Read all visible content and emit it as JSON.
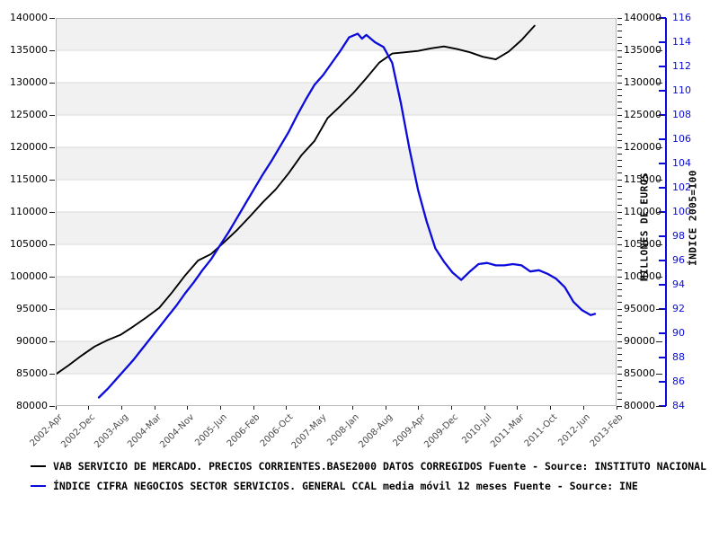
{
  "chart_data": {
    "type": "line",
    "title": "",
    "grid": "horizontal-bands",
    "legend_position": "bottom-left",
    "x_axis": {
      "start": "2002-Apr",
      "end": "2013-Feb",
      "range_months": 130,
      "tick_labels": [
        "2002-Apr",
        "2002-Dec",
        "2003-Aug",
        "2004-Mar",
        "2004-Nov",
        "2005-Jun",
        "2006-Feb",
        "2006-Oct",
        "2007-May",
        "2008-Jan",
        "2008-Aug",
        "2009-Apr",
        "2009-Dec",
        "2010-Jul",
        "2011-Mar",
        "2011-Oct",
        "2012-Jun",
        "2013-Feb"
      ]
    },
    "y_axis_left": {
      "label": "",
      "ticks": [
        140000,
        135000,
        130000,
        125000,
        120000,
        115000,
        110000,
        105000,
        100000,
        95000,
        90000,
        85000,
        80000
      ],
      "range": [
        80000,
        140000
      ]
    },
    "y_axis_right_euros": {
      "label": "MILLONES DE EUROS",
      "ticks": [
        140000,
        135000,
        130000,
        125000,
        120000,
        115000,
        110000,
        105000,
        100000,
        95000,
        90000,
        85000,
        80000
      ],
      "minor_tick_step": 1000,
      "range": [
        80000,
        140000
      ]
    },
    "y_axis_right_index": {
      "label": "ÍNDICE 2005=100",
      "ticks": [
        116,
        114,
        112,
        110,
        108,
        106,
        104,
        102,
        100,
        98,
        96,
        94,
        92,
        90,
        88,
        86,
        84
      ],
      "range": [
        84,
        116
      ]
    },
    "series": [
      {
        "name": "VAB SERVICIO DE MERCADO. PRECIOS CORRIENTES.BASE2000 DATOS CORREGIDOS  Fuente - Source: INSTITUTO NACIONAL",
        "axis": "left",
        "color": "#000000",
        "x_labels": [
          "2002-Apr",
          "2002-Jul",
          "2002-Oct",
          "2003-Jan",
          "2003-Apr",
          "2003-Jul",
          "2003-Oct",
          "2004-Jan",
          "2004-Apr",
          "2004-Jul",
          "2004-Oct",
          "2005-Jan",
          "2005-Apr",
          "2005-Jul",
          "2005-Oct",
          "2006-Jan",
          "2006-Apr",
          "2006-Jul",
          "2006-Oct",
          "2007-Jan",
          "2007-Apr",
          "2007-Jul",
          "2007-Oct",
          "2008-Jan",
          "2008-Apr",
          "2008-Jul",
          "2008-Oct",
          "2009-Jan",
          "2009-Apr",
          "2009-Jul",
          "2009-Oct",
          "2010-Jan",
          "2010-Apr",
          "2010-Jul",
          "2010-Oct",
          "2011-Jan",
          "2011-Apr",
          "2011-Jul"
        ],
        "x_months_from_2002_apr": [
          0,
          3,
          6,
          9,
          12,
          15,
          18,
          21,
          24,
          27,
          30,
          33,
          36,
          39,
          42,
          45,
          48,
          51,
          54,
          57,
          60,
          63,
          66,
          69,
          72,
          75,
          78,
          81,
          84,
          87,
          90,
          93,
          96,
          99,
          102,
          105,
          108,
          111
        ],
        "values": [
          84900,
          86300,
          87800,
          89200,
          90200,
          91000,
          92300,
          93700,
          95200,
          97600,
          100200,
          102500,
          103500,
          105300,
          107200,
          109300,
          111500,
          113500,
          116000,
          118800,
          121000,
          124500,
          126400,
          128400,
          130700,
          133100,
          134500,
          134700,
          134900,
          135300,
          135600,
          135200,
          134700,
          134000,
          133600,
          134800,
          136600,
          138800
        ]
      },
      {
        "name": "ÍNDICE CIFRA NEGOCIOS SECTOR SERVICIOS. GENERAL CCAL media móvil 12 meses  Fuente - Source: INE",
        "axis": "right_index",
        "color": "#0b0bdb",
        "x_labels": [
          "2003-Feb",
          "2003-Apr",
          "2003-Jun",
          "2003-Aug",
          "2003-Oct",
          "2003-Dec",
          "2004-Feb",
          "2004-Apr",
          "2004-Jun",
          "2004-Aug",
          "2004-Oct",
          "2004-Dec",
          "2005-Feb",
          "2005-Apr",
          "2005-Jun",
          "2005-Aug",
          "2005-Oct",
          "2005-Dec",
          "2006-Feb",
          "2006-Apr",
          "2006-Jun",
          "2006-Aug",
          "2006-Oct",
          "2006-Dec",
          "2007-Feb",
          "2007-Apr",
          "2007-Jun",
          "2007-Aug",
          "2007-Oct",
          "2007-Dec",
          "2008-Feb",
          "2008-Mar",
          "2008-Apr",
          "2008-Jun",
          "2008-Aug",
          "2008-Oct",
          "2008-Dec",
          "2009-Feb",
          "2009-Apr",
          "2009-Jun",
          "2009-Aug",
          "2009-Oct",
          "2009-Dec",
          "2010-Feb",
          "2010-Apr",
          "2010-Jun",
          "2010-Aug",
          "2010-Oct",
          "2010-Dec",
          "2011-Feb",
          "2011-Apr",
          "2011-Jun",
          "2011-Aug",
          "2011-Oct",
          "2011-Dec",
          "2012-Feb",
          "2012-Apr",
          "2012-Jun",
          "2012-Aug",
          "2012-Sep"
        ],
        "x_months_from_2002_apr": [
          10,
          12,
          14,
          16,
          18,
          20,
          22,
          24,
          26,
          28,
          30,
          32,
          34,
          36,
          38,
          40,
          42,
          44,
          46,
          48,
          50,
          52,
          54,
          56,
          58,
          60,
          62,
          64,
          66,
          68,
          70,
          71,
          72,
          74,
          76,
          78,
          80,
          82,
          84,
          86,
          88,
          90,
          92,
          94,
          96,
          98,
          100,
          102,
          104,
          106,
          108,
          110,
          112,
          114,
          116,
          118,
          120,
          122,
          124,
          125
        ],
        "values": [
          84.7,
          85.4,
          86.2,
          87.0,
          87.8,
          88.7,
          89.6,
          90.5,
          91.4,
          92.3,
          93.3,
          94.2,
          95.2,
          96.1,
          97.2,
          98.3,
          99.5,
          100.7,
          101.9,
          103.1,
          104.2,
          105.4,
          106.6,
          108.0,
          109.3,
          110.5,
          111.3,
          112.3,
          113.3,
          114.4,
          114.7,
          114.3,
          114.6,
          114.0,
          113.6,
          112.3,
          109.0,
          105.2,
          101.8,
          99.2,
          97.0,
          95.9,
          95.0,
          94.4,
          95.1,
          95.7,
          95.8,
          95.6,
          95.6,
          95.7,
          95.6,
          95.1,
          95.2,
          94.9,
          94.5,
          93.8,
          92.6,
          91.9,
          91.5,
          91.6
        ]
      }
    ],
    "legend": [
      {
        "label": "VAB SERVICIO DE MERCADO. PRECIOS CORRIENTES.BASE2000 DATOS CORREGIDOS  Fuente - Source: INSTITUTO NACIONAL",
        "color": "#000000"
      },
      {
        "label": "ÍNDICE CIFRA NEGOCIOS SECTOR SERVICIOS. GENERAL CCAL media móvil 12 meses  Fuente - Source: INE",
        "color": "#0b0bdb"
      }
    ],
    "style": {
      "band_fill": "#f1f1f1",
      "gridline": "#dadada",
      "frame": "#b9b9b9",
      "x_label_color": "#4a4a4a",
      "axis_text_color": "#000000",
      "index_axis_color": "#0b0bdb"
    }
  }
}
